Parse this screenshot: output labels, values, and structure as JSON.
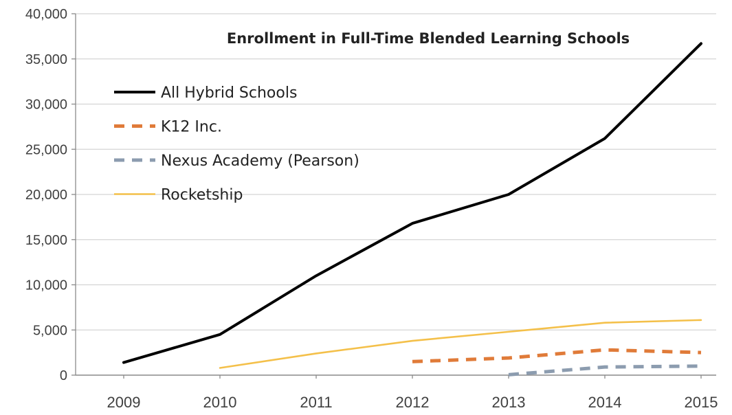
{
  "chart_data": {
    "type": "line",
    "title": "Enrollment in Full-Time Blended Learning Schools",
    "xlabel": "",
    "ylabel": "",
    "categories": [
      "2009",
      "2010",
      "2011",
      "2012",
      "2013",
      "2014",
      "2015"
    ],
    "ylim": [
      0,
      40000
    ],
    "yticks": [
      0,
      5000,
      10000,
      15000,
      20000,
      25000,
      30000,
      35000,
      40000
    ],
    "ytick_labels": [
      "0",
      "5,000",
      "10,000",
      "15,000",
      "20,000",
      "25,000",
      "30,000",
      "35,000",
      "40,000"
    ],
    "grid": "horizontal",
    "legend_position": "top-left",
    "series": [
      {
        "name": "All Hybrid Schools",
        "color": "#000000",
        "dash": "solid",
        "points": [
          [
            2009,
            1400
          ],
          [
            2010,
            4500
          ],
          [
            2011,
            11000
          ],
          [
            2012,
            16800
          ],
          [
            2013,
            20000
          ],
          [
            2014,
            26200
          ],
          [
            2015,
            36700
          ]
        ]
      },
      {
        "name": "K12 Inc.",
        "color": "#E07B39",
        "dash": "dashed",
        "points": [
          [
            2012,
            1500
          ],
          [
            2013,
            1900
          ],
          [
            2014,
            2800
          ],
          [
            2015,
            2500
          ]
        ]
      },
      {
        "name": "Nexus Academy (Pearson)",
        "color": "#8C9CAF",
        "dash": "dashed",
        "points": [
          [
            2013,
            50
          ],
          [
            2014,
            900
          ],
          [
            2015,
            1000
          ]
        ]
      },
      {
        "name": "Rocketship",
        "color": "#F4C04A",
        "dash": "solid",
        "points": [
          [
            2010,
            800
          ],
          [
            2011,
            2400
          ],
          [
            2012,
            3800
          ],
          [
            2013,
            4800
          ],
          [
            2014,
            5800
          ],
          [
            2015,
            6100
          ]
        ]
      }
    ]
  }
}
